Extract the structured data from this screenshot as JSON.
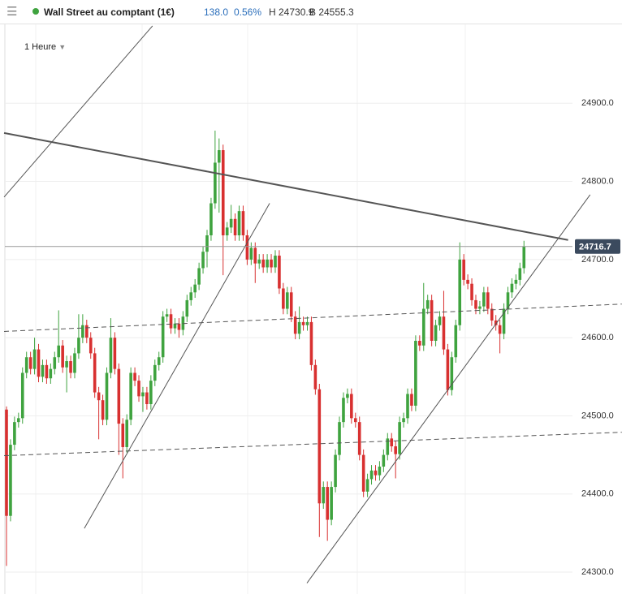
{
  "header": {
    "title": "Wall Street au comptant (1€)",
    "change": "138.0",
    "change_percent": "0.56%",
    "high": "H 24730.9",
    "low": "B 24555.3"
  },
  "timeframe": "1 Heure",
  "chart_data": {
    "type": "candlestick",
    "up_color": "#3fa33f",
    "down_color": "#d83030",
    "grid": true,
    "ylim": [
      24272,
      25001
    ],
    "yticks": [
      {
        "value": 24300,
        "label": "24300.0"
      },
      {
        "value": 24400,
        "label": "24400.0"
      },
      {
        "value": 24500,
        "label": "24500.0"
      },
      {
        "value": 24600,
        "label": "24600.0"
      },
      {
        "value": 24700,
        "label": "24700.0"
      },
      {
        "value": 24800,
        "label": "24800.0"
      },
      {
        "value": 24900,
        "label": "24900.0"
      }
    ],
    "open": [
      24508,
      24372,
      24463,
      24492,
      24497,
      24555,
      24575,
      24560,
      24585,
      24550,
      24565,
      24548,
      24560,
      24575,
      24590,
      24562,
      24570,
      24555,
      24580,
      24600,
      24616,
      24600,
      24580,
      24530,
      24520,
      24495,
      24555,
      24600,
      24560,
      24490,
      24460,
      24495,
      24555,
      24545,
      24525,
      24530,
      24515,
      24545,
      24565,
      24575,
      24627,
      24630,
      24612,
      24618,
      24610,
      24627,
      24648,
      24658,
      24668,
      24689,
      24710,
      24731,
      24772,
      24824,
      24840,
      24731,
      24741,
      24752,
      24731,
      24762,
      24731,
      24700,
      24715,
      24695,
      24700,
      24690,
      24700,
      24690,
      24705,
      24663,
      24637,
      24658,
      24627,
      24605,
      24620,
      24616,
      24620,
      24565,
      24534,
      24388,
      24409,
      24367,
      24409,
      24450,
      24492,
      24523,
      24528,
      24497,
      24492,
      24450,
      24403,
      24419,
      24430,
      24424,
      24435,
      24450,
      24471,
      24461,
      24451,
      24492,
      24497,
      24528,
      24513,
      24596,
      24590,
      24637,
      24648,
      24596,
      24616,
      24627,
      24585,
      24533,
      24575,
      24616,
      24700,
      24674,
      24669,
      24648,
      24637,
      24640,
      24658,
      24637,
      24622,
      24616,
      24605,
      24637,
      24658,
      24669,
      24674,
      24689
    ],
    "high": [
      24512,
      24470,
      24499,
      24504,
      24562,
      24582,
      24582,
      24600,
      24592,
      24572,
      24572,
      24567,
      24582,
      24635,
      24597,
      24577,
      24577,
      24587,
      24630,
      24630,
      24623,
      24607,
      24587,
      24537,
      24527,
      24562,
      24625,
      24607,
      24567,
      24497,
      24502,
      24562,
      24562,
      24552,
      24537,
      24537,
      24552,
      24572,
      24582,
      24634,
      24637,
      24637,
      24625,
      24625,
      24634,
      24655,
      24665,
      24675,
      24696,
      24717,
      24738,
      24779,
      24865,
      24855,
      24847,
      24748,
      24770,
      24759,
      24769,
      24769,
      24738,
      24722,
      24722,
      24707,
      24707,
      24707,
      24707,
      24712,
      24712,
      24670,
      24665,
      24665,
      24634,
      24640,
      24627,
      24627,
      24627,
      24572,
      24541,
      24416,
      24416,
      24416,
      24457,
      24499,
      24530,
      24535,
      24535,
      24504,
      24499,
      24457,
      24426,
      24437,
      24437,
      24442,
      24457,
      24478,
      24478,
      24468,
      24499,
      24504,
      24535,
      24535,
      24603,
      24603,
      24670,
      24655,
      24655,
      24623,
      24634,
      24660,
      24592,
      24582,
      24623,
      24722,
      24707,
      24681,
      24676,
      24655,
      24647,
      24665,
      24665,
      24644,
      24629,
      24623,
      24644,
      24665,
      24676,
      24681,
      24696,
      24724
    ],
    "low": [
      24308,
      24365,
      24456,
      24485,
      24490,
      24548,
      24553,
      24553,
      24543,
      24543,
      24541,
      24541,
      24553,
      24568,
      24555,
      24530,
      24548,
      24548,
      24573,
      24593,
      24593,
      24573,
      24523,
      24470,
      24488,
      24488,
      24548,
      24553,
      24450,
      24420,
      24453,
      24488,
      24538,
      24518,
      24505,
      24508,
      24508,
      24538,
      24558,
      24568,
      24620,
      24605,
      24605,
      24600,
      24603,
      24620,
      24641,
      24651,
      24661,
      24682,
      24690,
      24724,
      24765,
      24760,
      24680,
      24724,
      24734,
      24724,
      24724,
      24724,
      24693,
      24693,
      24670,
      24688,
      24683,
      24683,
      24683,
      24683,
      24656,
      24630,
      24630,
      24620,
      24598,
      24598,
      24609,
      24609,
      24558,
      24527,
      24345,
      24381,
      24340,
      24360,
      24402,
      24443,
      24485,
      24516,
      24490,
      24485,
      24443,
      24396,
      24396,
      24412,
      24417,
      24417,
      24428,
      24443,
      24454,
      24420,
      24444,
      24485,
      24490,
      24506,
      24506,
      24583,
      24583,
      24630,
      24589,
      24589,
      24609,
      24578,
      24526,
      24526,
      24568,
      24609,
      24667,
      24662,
      24641,
      24630,
      24630,
      24633,
      24630,
      24615,
      24609,
      24580,
      24598,
      24630,
      24651,
      24662,
      24667,
      24682
    ],
    "close": [
      24372,
      24463,
      24492,
      24497,
      24555,
      24575,
      24560,
      24585,
      24550,
      24565,
      24548,
      24560,
      24575,
      24590,
      24562,
      24570,
      24555,
      24580,
      24600,
      24616,
      24600,
      24580,
      24530,
      24520,
      24495,
      24555,
      24600,
      24560,
      24490,
      24460,
      24495,
      24555,
      24545,
      24525,
      24530,
      24515,
      24545,
      24565,
      24575,
      24627,
      24630,
      24612,
      24618,
      24610,
      24627,
      24648,
      24658,
      24668,
      24689,
      24710,
      24731,
      24772,
      24824,
      24840,
      24731,
      24741,
      24752,
      24731,
      24762,
      24731,
      24700,
      24715,
      24695,
      24700,
      24690,
      24700,
      24690,
      24705,
      24663,
      24637,
      24658,
      24627,
      24605,
      24620,
      24616,
      24620,
      24565,
      24534,
      24388,
      24409,
      24367,
      24409,
      24450,
      24492,
      24523,
      24528,
      24497,
      24492,
      24450,
      24403,
      24419,
      24430,
      24424,
      24435,
      24450,
      24471,
      24461,
      24451,
      24492,
      24497,
      24528,
      24513,
      24596,
      24590,
      24637,
      24648,
      24596,
      24616,
      24627,
      24585,
      24533,
      24575,
      24616,
      24700,
      24674,
      24669,
      24648,
      24637,
      24640,
      24658,
      24637,
      24622,
      24616,
      24605,
      24637,
      24658,
      24669,
      24674,
      24689,
      24716.7
    ],
    "trendlines": [
      {
        "x": [
          -0.6,
          36.4
        ],
        "y": [
          24780,
          24999
        ],
        "color": "#555555",
        "width": 1,
        "dash": false
      },
      {
        "x": [
          -0.6,
          140
        ],
        "y": [
          24862,
          24725
        ],
        "color": "#555555",
        "width": 2,
        "dash": false
      },
      {
        "x": [
          19.4,
          65.6
        ],
        "y": [
          24356,
          24772
        ],
        "color": "#555555",
        "width": 1,
        "dash": false
      },
      {
        "x": [
          74.9,
          145.5
        ],
        "y": [
          24286,
          24783
        ],
        "color": "#555555",
        "width": 1,
        "dash": false
      },
      {
        "x": [
          -0.6,
          153.4
        ],
        "y": [
          24608,
          24643
        ],
        "color": "#555555",
        "width": 1,
        "dash": true
      },
      {
        "x": [
          -0.6,
          153.4
        ],
        "y": [
          24449,
          24479
        ],
        "color": "#555555",
        "width": 1,
        "dash": true
      }
    ]
  }
}
